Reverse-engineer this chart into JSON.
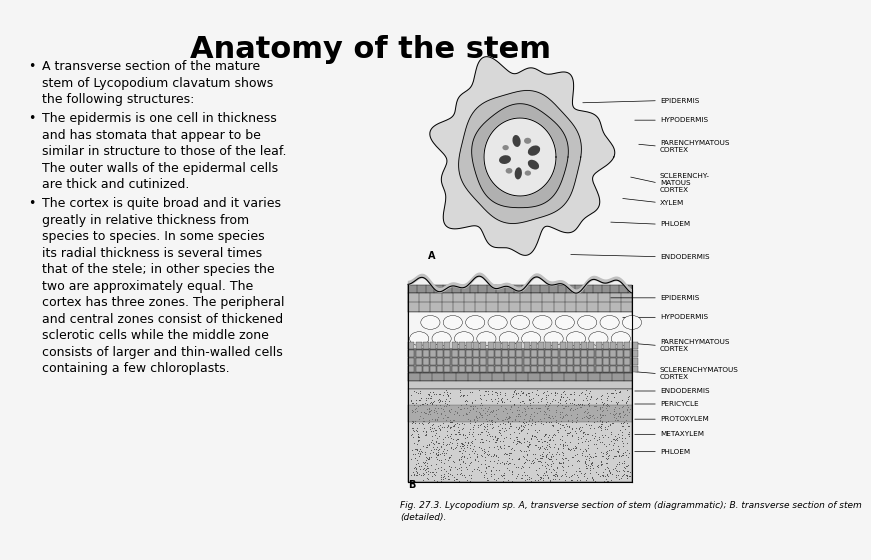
{
  "title": "Anatomy of the stem",
  "title_fontsize": 22,
  "title_fontweight": "bold",
  "background_color": "#f5f5f5",
  "text_color": "#000000",
  "bullet_points": [
    "A transverse section of the mature\nstem of Lycopodium clavatum shows\nthe following structures:",
    "The epidermis is one cell in thickness\nand has stomata that appear to be\nsimilar in structure to those of the leaf.\nThe outer walls of the epidermal cells\nare thick and cutinized.",
    "The cortex is quite broad and it varies\ngreatly in relative thickness from\nspecies to species. In some species\nits radial thickness is several times\nthat of the stele; in other species the\ntwo are approximately equal. The\ncortex has three zones. The peripheral\nand central zones consist of thickened\nsclerotic cells while the middle zone\nconsists of larger and thin-walled cells\ncontaining a few chloroplasts."
  ],
  "bullet_fontsize": 9.0,
  "fig_caption": "Fig. 27.3. Lycopodium sp. A, transverse section of stem (diagrammatic); B. transverse section of stem\n(detailed).",
  "caption_fontsize": 6.5,
  "label_fontsize": 5.2,
  "annotations_a": [
    [
      "EPIDERMIS",
      [
        4.5,
        9.05
      ],
      [
        6.5,
        9.1
      ]
    ],
    [
      "HYPODERMIS",
      [
        5.8,
        8.65
      ],
      [
        6.5,
        8.65
      ]
    ],
    [
      "PARENCHYMATOUS\nCORTEX",
      [
        5.9,
        8.1
      ],
      [
        6.5,
        8.05
      ]
    ],
    [
      "SCLERENCHY-\nMATOUS\nCORTEX",
      [
        5.7,
        7.35
      ],
      [
        6.5,
        7.2
      ]
    ],
    [
      "XYLEM",
      [
        5.5,
        6.85
      ],
      [
        6.5,
        6.75
      ]
    ],
    [
      "PHLOEM",
      [
        5.2,
        6.3
      ],
      [
        6.5,
        6.25
      ]
    ],
    [
      "ENDODERMIS",
      [
        4.2,
        5.55
      ],
      [
        6.5,
        5.5
      ]
    ]
  ],
  "annotations_b": [
    [
      "EPIDERMIS",
      [
        5.2,
        4.55
      ],
      [
        6.5,
        4.55
      ]
    ],
    [
      "HYPODERMIS",
      [
        5.5,
        4.1
      ],
      [
        6.5,
        4.1
      ]
    ],
    [
      "PARENCHYMATOUS\nCORTEX",
      [
        5.8,
        3.5
      ],
      [
        6.5,
        3.45
      ]
    ],
    [
      "SCLERENCHYMATOUS\nCORTEX",
      [
        5.8,
        2.85
      ],
      [
        6.5,
        2.8
      ]
    ],
    [
      "ENDODERMIS",
      [
        5.8,
        2.4
      ],
      [
        6.5,
        2.4
      ]
    ],
    [
      "PERICYCLE",
      [
        5.8,
        2.1
      ],
      [
        6.5,
        2.1
      ]
    ],
    [
      "PROTOXYLEM",
      [
        5.8,
        1.75
      ],
      [
        6.5,
        1.75
      ]
    ],
    [
      "METAXYLEM",
      [
        5.8,
        1.4
      ],
      [
        6.5,
        1.4
      ]
    ],
    [
      "PHLOEM",
      [
        5.8,
        1.0
      ],
      [
        6.5,
        1.0
      ]
    ]
  ]
}
